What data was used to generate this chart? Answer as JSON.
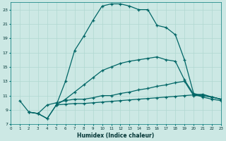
{
  "xlabel": "Humidex (Indice chaleur)",
  "background_color": "#cce8e4",
  "grid_color": "#b0d8d0",
  "line_color": "#006666",
  "xlim": [
    0,
    23
  ],
  "ylim": [
    7,
    24
  ],
  "xticks": [
    0,
    1,
    2,
    3,
    4,
    5,
    6,
    7,
    8,
    9,
    10,
    11,
    12,
    13,
    14,
    15,
    16,
    17,
    18,
    19,
    20,
    21,
    22,
    23
  ],
  "yticks": [
    7,
    9,
    11,
    13,
    15,
    17,
    19,
    21,
    23
  ],
  "line1_x": [
    1,
    2,
    3,
    4,
    5,
    6,
    7,
    8,
    9,
    10,
    11,
    12,
    13,
    14,
    15,
    16,
    17,
    18,
    19,
    20,
    21,
    22,
    23
  ],
  "line1_y": [
    10.3,
    8.7,
    8.5,
    7.8,
    9.7,
    13.0,
    17.3,
    19.3,
    21.5,
    23.5,
    23.8,
    23.8,
    23.5,
    23.0,
    23.0,
    20.8,
    20.5,
    19.5,
    16.0,
    11.3,
    11.0,
    10.8,
    10.5
  ],
  "line2_x": [
    2,
    3,
    4,
    5,
    6,
    7,
    8,
    9,
    10,
    11,
    12,
    13,
    14,
    15,
    16,
    17,
    18,
    19,
    20,
    21,
    22,
    23
  ],
  "line2_y": [
    8.7,
    8.5,
    9.7,
    10.0,
    10.3,
    10.5,
    10.5,
    10.7,
    11.0,
    11.0,
    11.3,
    11.5,
    11.8,
    12.0,
    12.3,
    12.5,
    12.8,
    13.0,
    11.0,
    11.0,
    10.8,
    10.5
  ],
  "line3_x": [
    2,
    3,
    4,
    5,
    6,
    7,
    8,
    9,
    10,
    11,
    12,
    13,
    14,
    15,
    16,
    17,
    18,
    19,
    20,
    21,
    22,
    23
  ],
  "line3_y": [
    8.7,
    8.5,
    7.8,
    9.7,
    9.8,
    9.9,
    9.9,
    10.0,
    10.1,
    10.2,
    10.3,
    10.4,
    10.5,
    10.6,
    10.7,
    10.8,
    10.9,
    11.0,
    11.1,
    11.2,
    10.8,
    10.5
  ],
  "line4_x": [
    5,
    6,
    7,
    8,
    9,
    10,
    11,
    12,
    13,
    14,
    15,
    16,
    17,
    18,
    19,
    20,
    21,
    22,
    23
  ],
  "line4_y": [
    9.7,
    10.5,
    11.5,
    12.5,
    13.5,
    14.5,
    15.0,
    15.5,
    15.8,
    16.0,
    16.2,
    16.4,
    16.0,
    15.8,
    13.2,
    11.2,
    10.8,
    10.5,
    10.3
  ]
}
